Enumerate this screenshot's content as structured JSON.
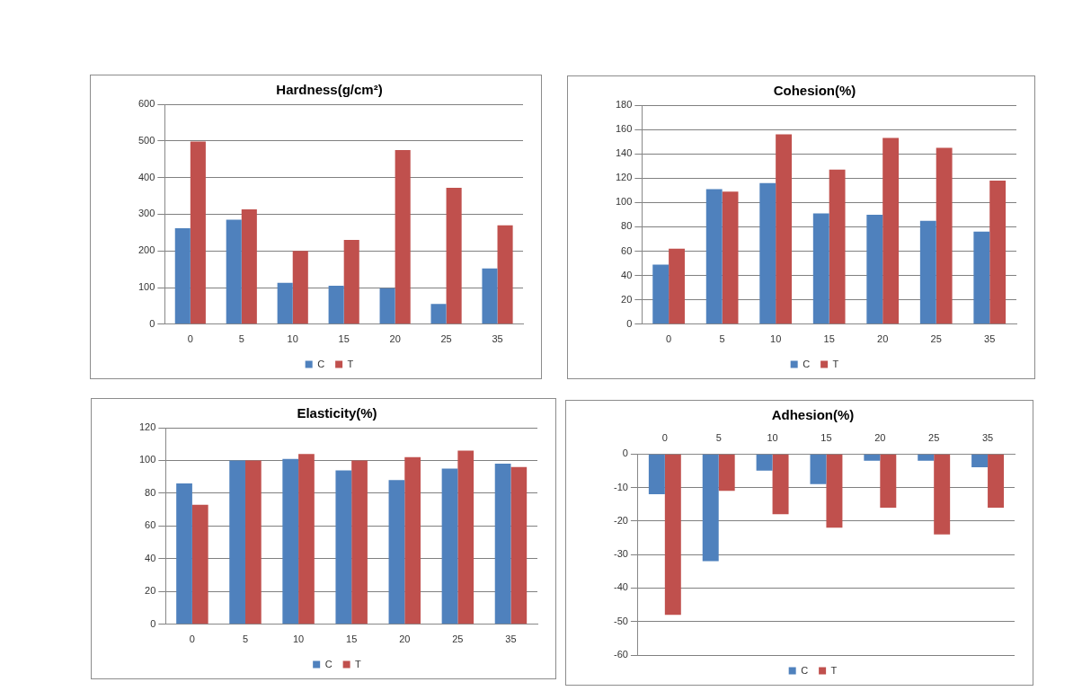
{
  "chart_data": [
    {
      "type": "bar",
      "title": "Hardness(g/cm²)",
      "categories": [
        "0",
        "5",
        "10",
        "15",
        "20",
        "25",
        "35"
      ],
      "series": [
        {
          "name": "C",
          "color": "#4f81bd",
          "values": [
            262,
            285,
            113,
            105,
            98,
            55,
            152
          ]
        },
        {
          "name": "T",
          "color": "#c0504d",
          "values": [
            498,
            313,
            200,
            230,
            475,
            372,
            270
          ]
        }
      ],
      "ylim": [
        0,
        600
      ],
      "yticks": [
        0,
        100,
        200,
        300,
        400,
        500,
        600
      ],
      "grid": true,
      "legend": "bottom"
    },
    {
      "type": "bar",
      "title": "Cohesion(%)",
      "categories": [
        "0",
        "5",
        "10",
        "15",
        "20",
        "25",
        "35"
      ],
      "series": [
        {
          "name": "C",
          "color": "#4f81bd",
          "values": [
            49,
            111,
            116,
            91,
            90,
            85,
            76
          ]
        },
        {
          "name": "T",
          "color": "#c0504d",
          "values": [
            62,
            109,
            156,
            127,
            153,
            145,
            118
          ]
        }
      ],
      "ylim": [
        0,
        180
      ],
      "yticks": [
        0,
        20,
        40,
        60,
        80,
        100,
        120,
        140,
        160,
        180
      ],
      "grid": true,
      "legend": "bottom"
    },
    {
      "type": "bar",
      "title": "Elasticity(%)",
      "categories": [
        "0",
        "5",
        "10",
        "15",
        "20",
        "25",
        "35"
      ],
      "series": [
        {
          "name": "C",
          "color": "#4f81bd",
          "values": [
            86,
            100,
            101,
            94,
            88,
            95,
            98
          ]
        },
        {
          "name": "T",
          "color": "#c0504d",
          "values": [
            73,
            100,
            104,
            100,
            102,
            106,
            96
          ]
        }
      ],
      "ylim": [
        0,
        120
      ],
      "yticks": [
        0,
        20,
        40,
        60,
        80,
        100,
        120
      ],
      "grid": true,
      "legend": "bottom"
    },
    {
      "type": "bar",
      "title": "Adhesion(%)",
      "categories": [
        "0",
        "5",
        "10",
        "15",
        "20",
        "25",
        "35"
      ],
      "series": [
        {
          "name": "C",
          "color": "#4f81bd",
          "values": [
            -12,
            -32,
            -5,
            -9,
            -2,
            -2,
            -4
          ]
        },
        {
          "name": "T",
          "color": "#c0504d",
          "values": [
            -48,
            -11,
            -18,
            -22,
            -16,
            -24,
            -16
          ]
        }
      ],
      "ylim": [
        -60,
        0
      ],
      "yticks": [
        -60,
        -50,
        -40,
        -30,
        -20,
        -10,
        0
      ],
      "grid": true,
      "legend": "bottom"
    }
  ]
}
